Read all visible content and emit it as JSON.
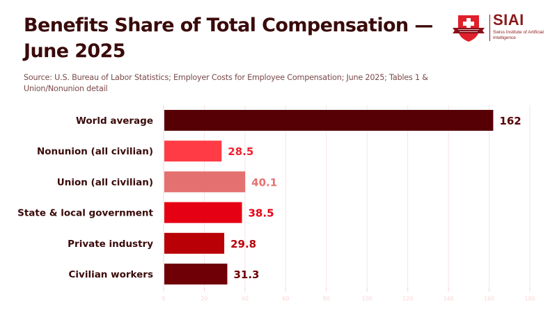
{
  "header": {
    "title": "Benefits Share of Total Compensation — June 2025",
    "subtitle": "Source: U.S. Bureau of Labor Statistics; Employer Costs for Employee Compensation; June 2025; Tables 1 & Union/Nonunion detail"
  },
  "logo": {
    "name": "SIAI",
    "tagline": "Swiss Institute of Artificial Intelligence",
    "icon": "swiss-cross-shield-icon"
  },
  "chart_data": {
    "type": "bar",
    "orientation": "horizontal",
    "title": "Benefits Share of Total Compensation — June 2025",
    "xlabel": "",
    "ylabel": "",
    "xlim": [
      0,
      180
    ],
    "grid": true,
    "categories": [
      "World average",
      "Nonunion (all civilian)",
      "Union (all civilian)",
      "State & local government",
      "Private industry",
      "Civilian workers"
    ],
    "values": [
      162,
      28.5,
      40.1,
      38.5,
      29.8,
      31.3
    ],
    "value_labels": [
      "162",
      "28.5",
      "40.1",
      "38.5",
      "29.8",
      "31.3"
    ],
    "colors": [
      "#560006",
      "#ff3b45",
      "#e57070",
      "#e60014",
      "#b80006",
      "#6e0006"
    ],
    "label_colors": [
      "#560006",
      "#f0202c",
      "#e57070",
      "#e60014",
      "#b80006",
      "#6e0006"
    ],
    "xticks": [
      0,
      20,
      40,
      60,
      80,
      100,
      120,
      140,
      160,
      180
    ],
    "xtick_labels": [
      "0",
      "20",
      "40",
      "60",
      "80",
      "100",
      "120",
      "140",
      "160",
      "180"
    ]
  }
}
